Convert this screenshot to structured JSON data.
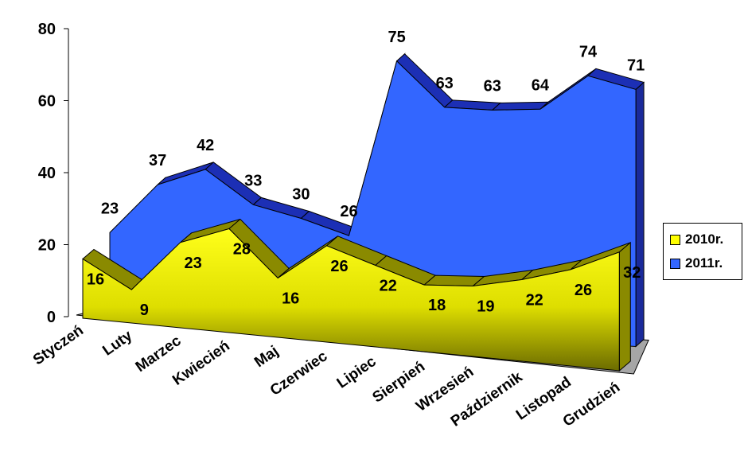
{
  "chart_data": {
    "type": "area",
    "categories": [
      "Styczeń",
      "Luty",
      "Marzec",
      "Kwiecień",
      "Maj",
      "Czerwiec",
      "Lipiec",
      "Sierpień",
      "Wrzesień",
      "Październik",
      "Listopad",
      "Grudzień"
    ],
    "series": [
      {
        "name": "2010r.",
        "values": [
          16,
          9,
          23,
          28,
          16,
          26,
          22,
          18,
          19,
          22,
          26,
          32
        ],
        "color": "#ffff00"
      },
      {
        "name": "2011r.",
        "values": [
          23,
          37,
          42,
          33,
          30,
          26,
          75,
          63,
          63,
          64,
          74,
          71
        ],
        "color": "#3366ff"
      }
    ],
    "y_ticks": [
      "0",
      "20",
      "40",
      "60",
      "80"
    ],
    "ylim": [
      0,
      80
    ],
    "legend_position": "right",
    "grid": false,
    "style": "3d-area"
  }
}
